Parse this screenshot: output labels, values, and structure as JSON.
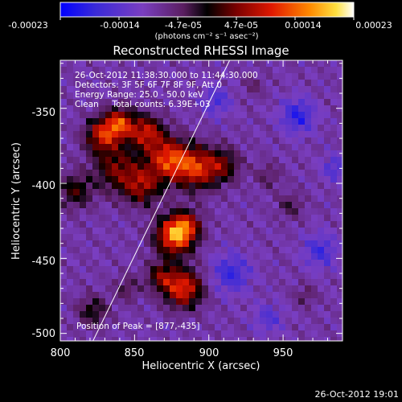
{
  "colorbar": {
    "tick_labels": [
      "-0.00023",
      "-0.00014",
      "-4.7e-05",
      "4.7e-05",
      "0.00014",
      "0.00023"
    ],
    "unit_label": "(photons cm⁻² s⁻¹ asec⁻²)"
  },
  "plot": {
    "title": "Reconstructed RHESSI Image",
    "xlabel": "Heliocentric X (arcsec)",
    "ylabel": "Heliocentric Y (arcsec)",
    "x_ticks": [
      "800",
      "850",
      "900",
      "950"
    ],
    "y_ticks": [
      "-350",
      "-400",
      "-450",
      "-500"
    ],
    "x_tick_values": [
      800,
      850,
      900,
      950
    ],
    "y_tick_values": [
      -350,
      -400,
      -450,
      -500
    ],
    "xlim": [
      800,
      990
    ],
    "ylim": [
      -505,
      -318
    ]
  },
  "annotations": {
    "time_range": "26-Oct-2012 11:38:30.000 to 11:44:30.000",
    "detectors": "Detectors: 3F 5F 6F 7F 8F 9F, Att 0",
    "energy_range": "Energy Range: 25.0 - 50.0 keV",
    "clean_counts": "Clean     Total counts: 6.39E+03",
    "peak_position": "Position of Peak = [877,-435]"
  },
  "footer": {
    "timestamp": "26-Oct-2012 19:01"
  },
  "chart_data": {
    "type": "heatmap",
    "title": "Reconstructed RHESSI Image",
    "xlabel": "Heliocentric X (arcsec)",
    "ylabel": "Heliocentric Y (arcsec)",
    "xlim": [
      800,
      990
    ],
    "ylim": [
      -505,
      -318
    ],
    "colorbar_range": [
      -0.00023,
      0.00023
    ],
    "peak": [
      877,
      -435
    ],
    "limb_line": [
      [
        822,
        -505
      ],
      [
        914,
        -318
      ]
    ],
    "sources": [
      {
        "x": 828,
        "y": -368,
        "sigma": 8,
        "amplitude": 0.00016
      },
      {
        "x": 840,
        "y": -360,
        "sigma": 7,
        "amplitude": 0.00018
      },
      {
        "x": 858,
        "y": -366,
        "sigma": 8,
        "amplitude": 0.00016
      },
      {
        "x": 838,
        "y": -390,
        "sigma": 11,
        "amplitude": 0.00012
      },
      {
        "x": 873,
        "y": -384,
        "sigma": 10,
        "amplitude": 0.00019
      },
      {
        "x": 892,
        "y": -390,
        "sigma": 10,
        "amplitude": 0.00017
      },
      {
        "x": 910,
        "y": -388,
        "sigma": 8,
        "amplitude": 0.0001
      },
      {
        "x": 855,
        "y": -402,
        "sigma": 9,
        "amplitude": 0.00013
      },
      {
        "x": 810,
        "y": -405,
        "sigma": 8,
        "amplitude": 0.0001
      },
      {
        "x": 877,
        "y": -435,
        "sigma": 9,
        "amplitude": 0.00023
      },
      {
        "x": 885,
        "y": -428,
        "sigma": 7,
        "amplitude": 0.00012
      },
      {
        "x": 883,
        "y": -470,
        "sigma": 9,
        "amplitude": 0.00019
      },
      {
        "x": 868,
        "y": -462,
        "sigma": 7,
        "amplitude": 0.00011
      },
      {
        "x": 822,
        "y": -485,
        "sigma": 7,
        "amplitude": 9e-05
      },
      {
        "x": 845,
        "y": -470,
        "sigma": 6,
        "amplitude": 6e-05
      },
      {
        "x": 955,
        "y": -415,
        "sigma": 6,
        "amplitude": 6e-05
      },
      {
        "x": 965,
        "y": -475,
        "sigma": 5,
        "amplitude": 5e-05
      },
      {
        "x": 940,
        "y": -395,
        "sigma": 6,
        "amplitude": 5e-05
      },
      {
        "x": 930,
        "y": -335,
        "sigma": 5,
        "amplitude": 4e-05
      },
      {
        "x": 960,
        "y": -355,
        "sigma": 8,
        "amplitude": -0.0001
      },
      {
        "x": 975,
        "y": -445,
        "sigma": 8,
        "amplitude": -8e-05
      },
      {
        "x": 915,
        "y": -460,
        "sigma": 9,
        "amplitude": -9e-05
      },
      {
        "x": 905,
        "y": -345,
        "sigma": 7,
        "amplitude": -7e-05
      },
      {
        "x": 985,
        "y": -390,
        "sigma": 6,
        "amplitude": -7e-05
      },
      {
        "x": 940,
        "y": -490,
        "sigma": 7,
        "amplitude": -6e-05
      }
    ]
  }
}
